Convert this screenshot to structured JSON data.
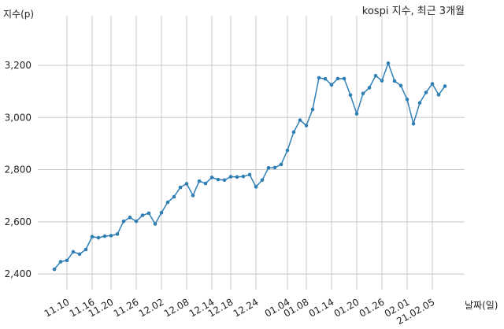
{
  "chart_data": {
    "type": "line",
    "title": "kospi 지수, 최근 3개월",
    "ylabel": "지수(p)",
    "xlabel": "날짜(일)",
    "ylim": [
      2340,
      3390
    ],
    "y_ticks": [
      2400,
      2600,
      2800,
      3000,
      3200
    ],
    "y_tick_labels": [
      "2,400",
      "2,600",
      "2,800",
      "3,000",
      "3,200"
    ],
    "x_tick_labels": [
      "11.10",
      "11.16",
      "11.20",
      "11.26",
      "12.02",
      "12.08",
      "12.14",
      "12.18",
      "12.24",
      "01.04",
      "01.08",
      "01.14",
      "01.20",
      "01.26",
      "02.01",
      "21.02.05"
    ],
    "x_tick_indices": [
      2,
      6,
      9,
      13,
      17,
      21,
      25,
      28,
      32,
      37,
      40,
      44,
      48,
      52,
      56,
      60
    ],
    "grid": true,
    "line_color": "#2f7fb5",
    "series": [
      {
        "values": [
          2418,
          2447,
          2452,
          2485,
          2476,
          2494,
          2543,
          2539,
          2545,
          2547,
          2553,
          2602,
          2617,
          2602,
          2625,
          2633,
          2592,
          2635,
          2675,
          2696,
          2732,
          2746,
          2701,
          2756,
          2747,
          2770,
          2762,
          2760,
          2773,
          2772,
          2774,
          2781,
          2734,
          2760,
          2807,
          2808,
          2820,
          2874,
          2944,
          2990,
          2969,
          3031,
          3152,
          3148,
          3125,
          3149,
          3149,
          3086,
          3014,
          3092,
          3114,
          3160,
          3141,
          3208,
          3140,
          3122,
          3069,
          2976,
          3056,
          3096,
          3129,
          3087,
          3120
        ]
      }
    ]
  }
}
